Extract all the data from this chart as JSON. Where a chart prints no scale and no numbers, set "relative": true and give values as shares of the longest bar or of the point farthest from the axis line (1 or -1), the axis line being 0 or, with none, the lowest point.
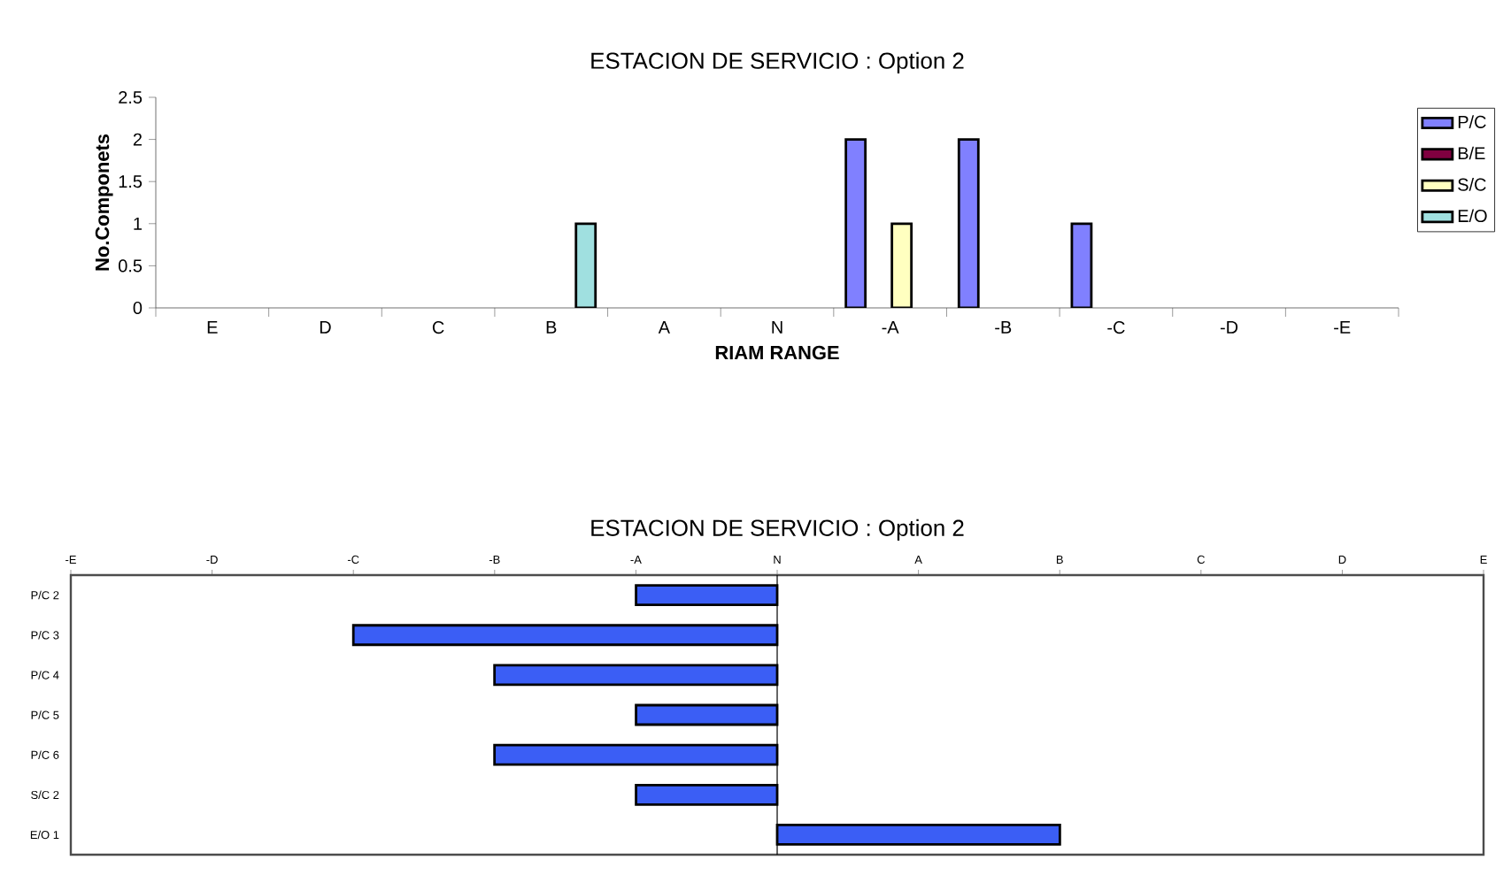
{
  "chart_data": [
    {
      "type": "bar",
      "title": "ESTACION DE SERVICIO : Option 2",
      "xlabel": "RIAM RANGE",
      "ylabel": "No.Componets",
      "categories": [
        "E",
        "D",
        "C",
        "B",
        "A",
        "N",
        "-A",
        "-B",
        "-C",
        "-D",
        "-E"
      ],
      "series": [
        {
          "name": "P/C",
          "color": "#8080ff",
          "values": [
            null,
            null,
            null,
            null,
            null,
            null,
            2,
            2,
            1,
            null,
            null
          ]
        },
        {
          "name": "B/E",
          "color": "#800040",
          "values": [
            null,
            null,
            null,
            null,
            null,
            null,
            null,
            null,
            null,
            null,
            null
          ]
        },
        {
          "name": "S/C",
          "color": "#ffffc0",
          "values": [
            null,
            null,
            null,
            null,
            null,
            null,
            1,
            null,
            null,
            null,
            null
          ]
        },
        {
          "name": "E/O",
          "color": "#a0e0e0",
          "values": [
            null,
            null,
            null,
            1,
            null,
            null,
            null,
            null,
            null,
            null,
            null
          ]
        }
      ],
      "ylim": [
        0,
        2.5
      ],
      "yticks": [
        0,
        0.5,
        1,
        1.5,
        2,
        2.5
      ],
      "legend": "right"
    },
    {
      "type": "bar",
      "orientation": "horizontal",
      "title": "ESTACION DE SERVICIO : Option 2",
      "categories": [
        "P/C 2",
        "P/C 3",
        "P/C 4",
        "P/C 5",
        "P/C 6",
        "S/C 2",
        "E/O 1"
      ],
      "values": [
        -0.333,
        -1,
        -0.667,
        -0.333,
        -0.667,
        -0.333,
        0.667
      ],
      "color": "#3b5ef5",
      "relative": true,
      "annotations": [
        "-E",
        "-D",
        "-C",
        "-B",
        "-A",
        "N",
        "A",
        "B",
        "C",
        "D",
        "E"
      ],
      "grid": false
    }
  ]
}
